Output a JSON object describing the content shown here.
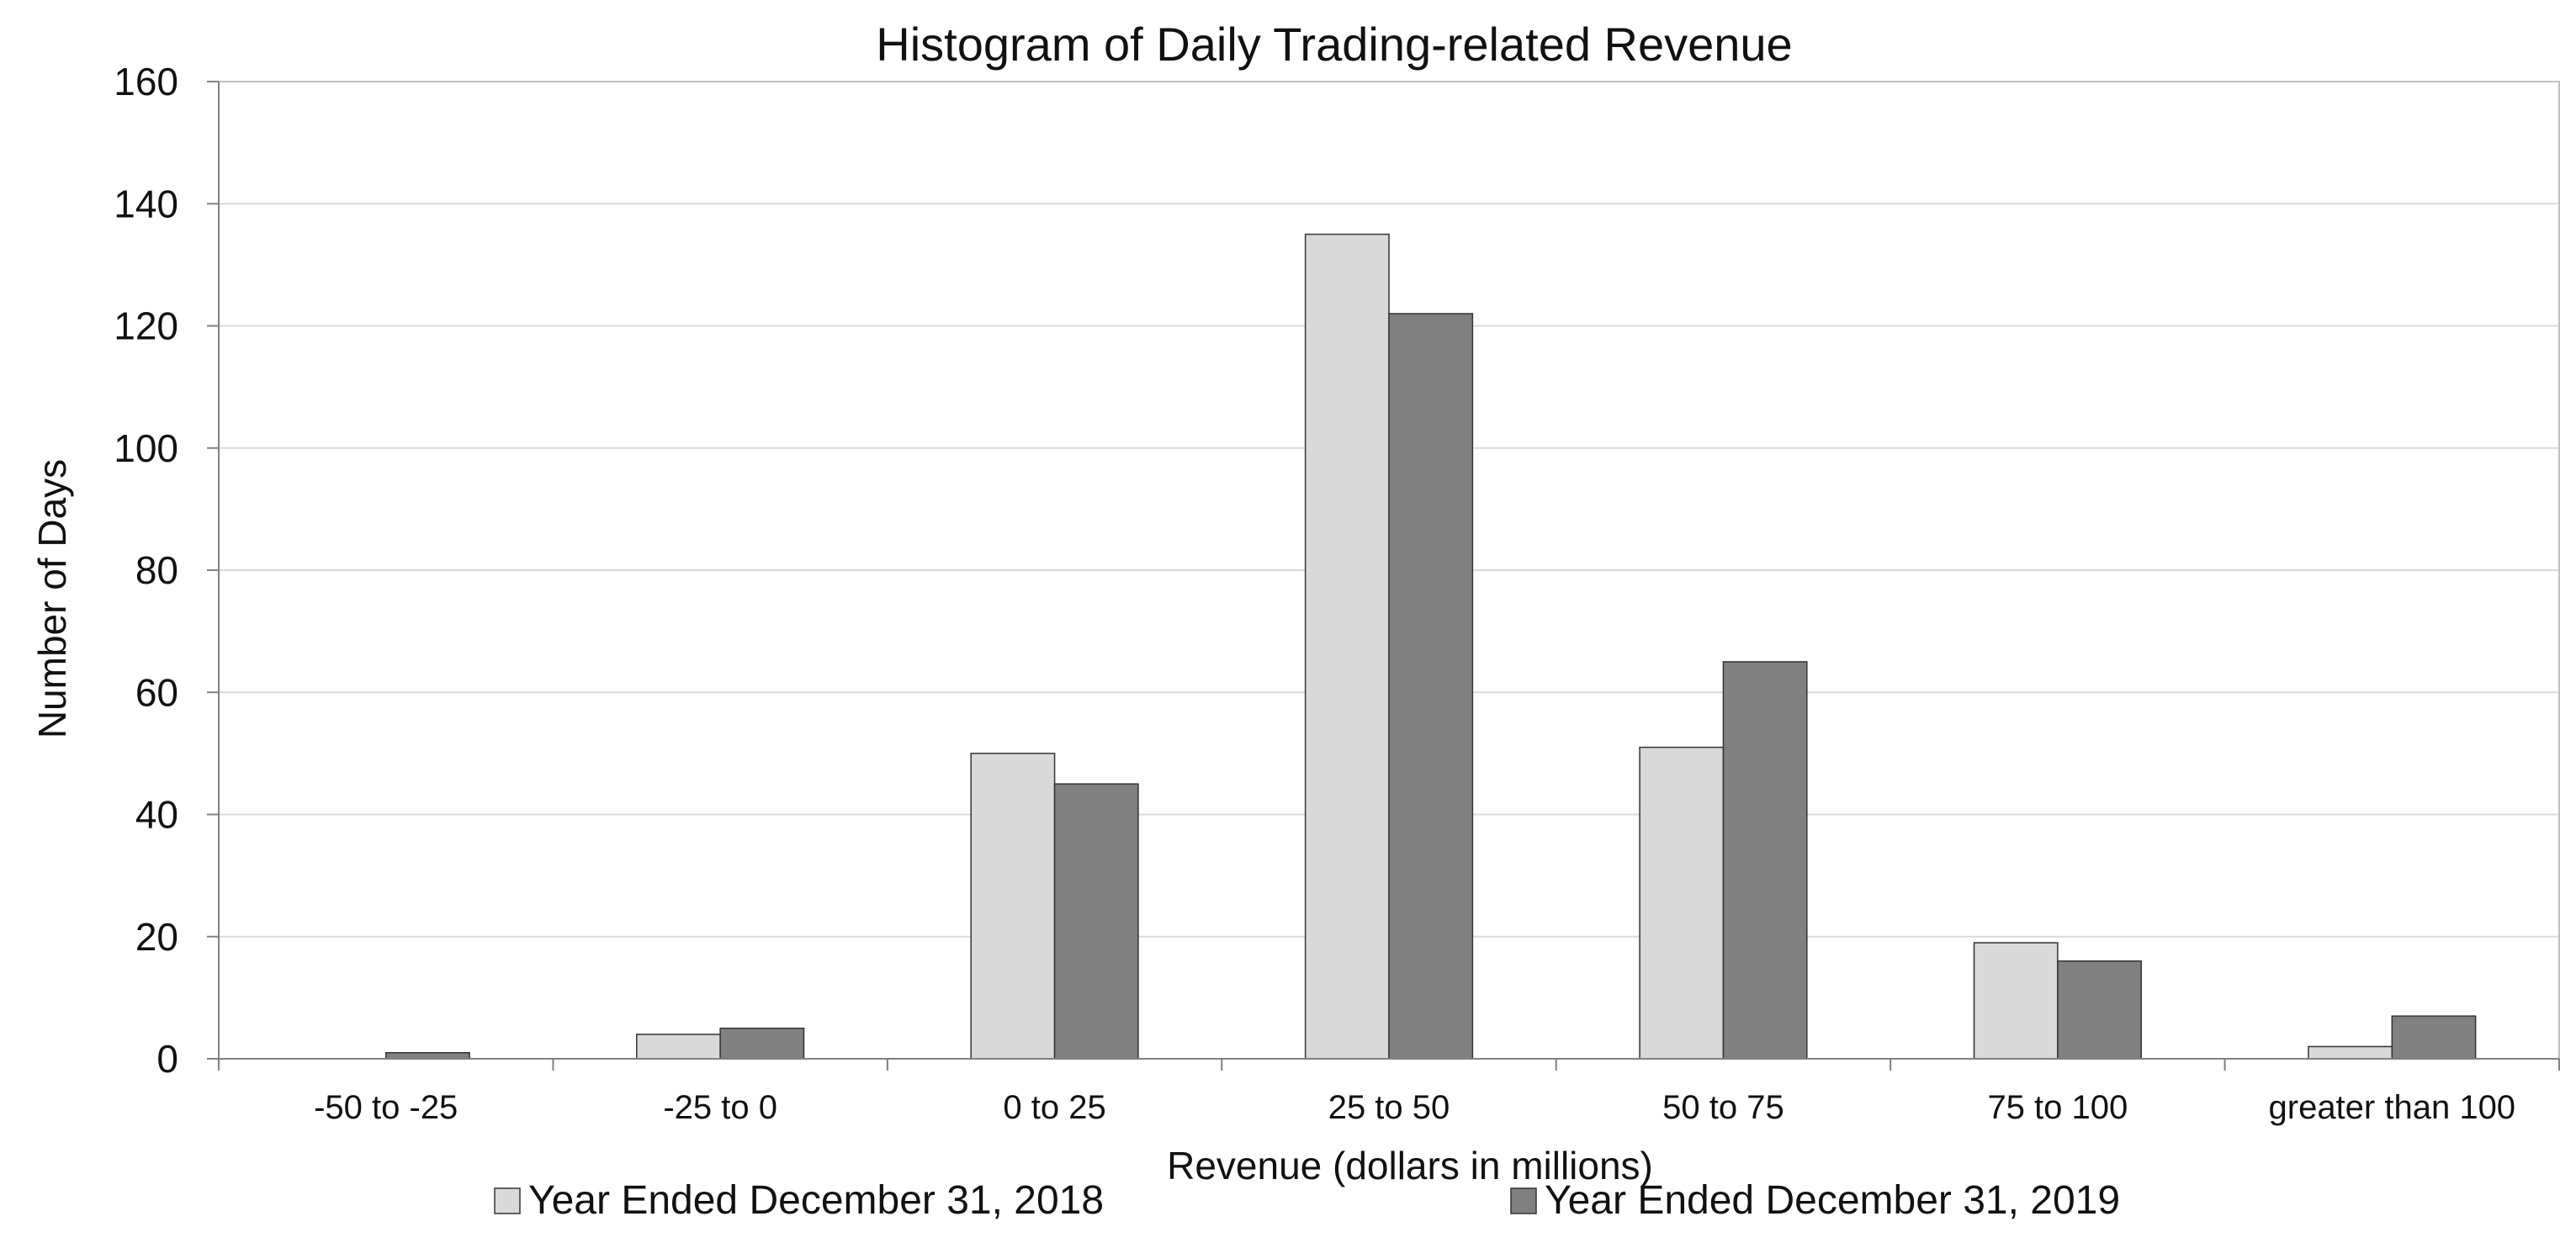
{
  "chart_data": {
    "type": "bar",
    "title": "Histogram of Daily Trading-related Revenue",
    "xlabel": "Revenue (dollars in millions)",
    "ylabel": "Number of Days",
    "ylim": [
      0,
      160
    ],
    "yticks": [
      0,
      20,
      40,
      60,
      80,
      100,
      120,
      140,
      160
    ],
    "grid": true,
    "legend_position": "bottom",
    "categories": [
      "-50 to -25",
      "-25 to 0",
      "0 to 25",
      "25 to 50",
      "50 to 75",
      "75 to 100",
      "greater than 100"
    ],
    "series": [
      {
        "name": "Year Ended December 31, 2018",
        "color": "#d9d9d9",
        "values": [
          0,
          4,
          50,
          135,
          51,
          19,
          2
        ]
      },
      {
        "name": "Year Ended December 31, 2019",
        "color": "#808080",
        "values": [
          1,
          5,
          45,
          122,
          65,
          16,
          7
        ]
      }
    ]
  }
}
